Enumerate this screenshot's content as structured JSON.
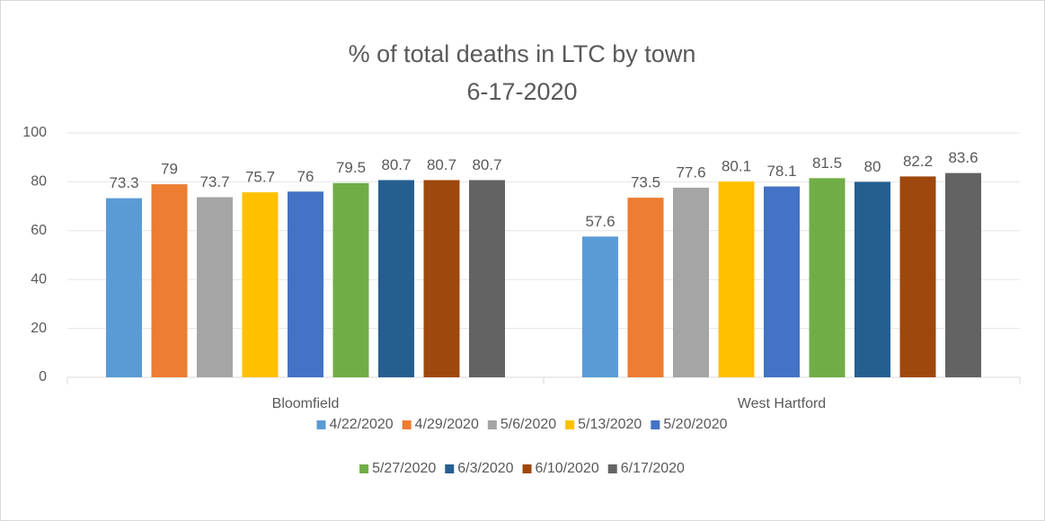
{
  "chart_data": {
    "type": "bar",
    "title": "% of total deaths in LTC by town",
    "subtitle": "6-17-2020",
    "categories": [
      "Bloomfield",
      "West Hartford"
    ],
    "series": [
      {
        "name": "4/22/2020",
        "color": "#5B9BD5",
        "values": [
          73.3,
          57.6
        ]
      },
      {
        "name": "4/29/2020",
        "color": "#ED7D31",
        "values": [
          79,
          73.5
        ]
      },
      {
        "name": "5/6/2020",
        "color": "#A5A5A5",
        "values": [
          73.7,
          77.6
        ]
      },
      {
        "name": "5/13/2020",
        "color": "#FFC000",
        "values": [
          75.7,
          80.1
        ]
      },
      {
        "name": "5/20/2020",
        "color": "#4472C4",
        "values": [
          76,
          78.1
        ]
      },
      {
        "name": "5/27/2020",
        "color": "#70AD47",
        "values": [
          79.5,
          81.5
        ]
      },
      {
        "name": "6/3/2020",
        "color": "#255E91",
        "values": [
          80.7,
          80
        ]
      },
      {
        "name": "6/10/2020",
        "color": "#9E480E",
        "values": [
          80.7,
          82.2
        ]
      },
      {
        "name": "6/17/2020",
        "color": "#636363",
        "values": [
          80.7,
          83.6
        ]
      }
    ],
    "ylim": [
      0,
      100
    ],
    "yticks": [
      0,
      20,
      40,
      60,
      80,
      100
    ],
    "grid": true,
    "legend": "bottom"
  }
}
